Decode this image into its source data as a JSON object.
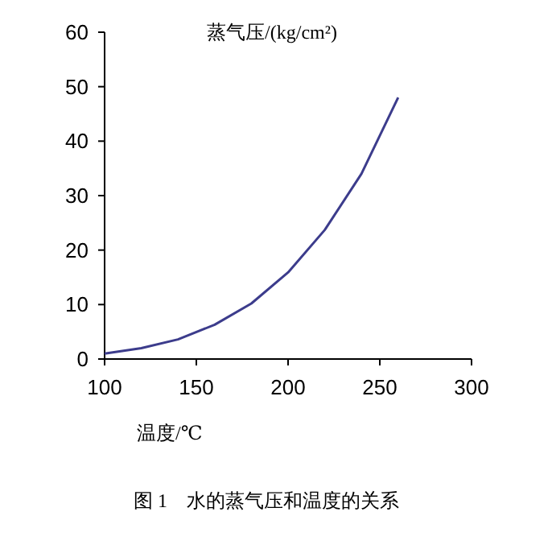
{
  "chart_data": {
    "type": "line",
    "ylabel": "蒸气压/(kg/cm²)",
    "xlabel": "温度/℃",
    "annotations": [
      "图 1　水的蒸气压和温度的关系"
    ],
    "x": [
      100,
      120,
      140,
      160,
      180,
      200,
      220,
      240,
      260
    ],
    "series": [
      {
        "color": "#3c3c8c",
        "values": [
          1,
          2,
          3.6,
          6.3,
          10.2,
          15.9,
          23.7,
          34,
          48
        ]
      }
    ],
    "xlim": [
      100,
      300
    ],
    "xticks": [
      100,
      150,
      200,
      250,
      300
    ],
    "ylim": [
      0,
      60
    ],
    "yticks": [
      0,
      10,
      20,
      30,
      40,
      50,
      60
    ],
    "grid": false,
    "marker": "none",
    "line_style": "solid"
  }
}
